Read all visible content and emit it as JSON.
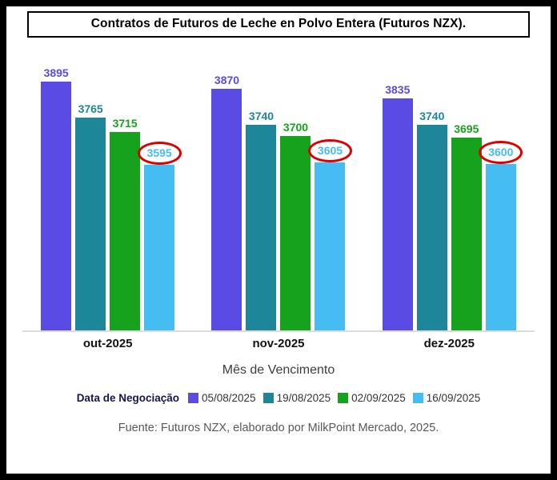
{
  "title": "Contratos de Futuros de Leche en Polvo Entera (Futuros NZX).",
  "chart_data": {
    "type": "bar",
    "title": "Contratos de Futuros de Leche en Polvo Entera (Futuros NZX).",
    "categories": [
      "out-2025",
      "nov-2025",
      "dez-2025"
    ],
    "series": [
      {
        "name": "05/08/2025",
        "color": "#5a4be4",
        "values": [
          3895,
          3870,
          3835
        ]
      },
      {
        "name": "19/08/2025",
        "color": "#1d8698",
        "values": [
          3765,
          3740,
          3740
        ]
      },
      {
        "name": "02/09/2025",
        "color": "#17a21d",
        "values": [
          3715,
          3700,
          3695
        ]
      },
      {
        "name": "16/09/2025",
        "color": "#45bdf2",
        "values": [
          3595,
          3605,
          3600
        ],
        "circled": true
      }
    ],
    "xlabel": "Mês de Vencimento",
    "ylabel": "",
    "ylim": [
      3000,
      3950
    ],
    "grid": false,
    "legend_position": "bottom",
    "legend_title": "Data de Negociação",
    "highlight_color": "#dd0000"
  },
  "footer": "Fuente: Futuros NZX, elaborado por MilkPoint Mercado, 2025."
}
